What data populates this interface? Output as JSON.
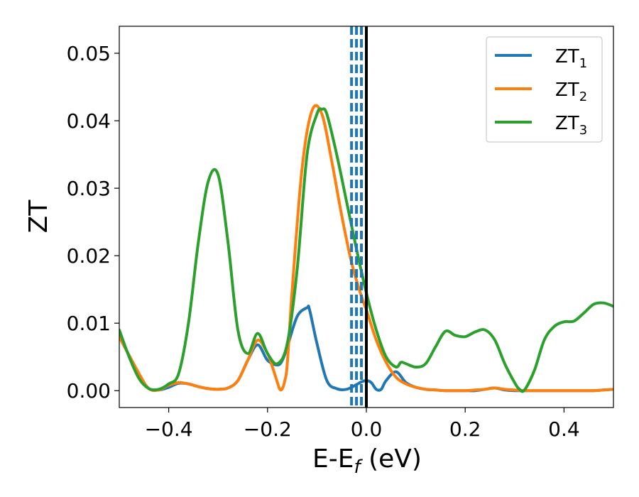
{
  "chart_data": {
    "type": "line",
    "xlabel": "E-E",
    "xlabel_sub": "f",
    "xlabel_unit": " (eV)",
    "ylabel": "ZT",
    "xlim": [
      -0.5,
      0.5
    ],
    "ylim": [
      -0.0025,
      0.054
    ],
    "xticks": [
      -0.4,
      -0.2,
      0.0,
      0.2,
      0.4
    ],
    "xtick_labels": [
      "−0.4",
      "−0.2",
      "0.0",
      "0.2",
      "0.4"
    ],
    "yticks": [
      0.0,
      0.01,
      0.02,
      0.03,
      0.04,
      0.05
    ],
    "ytick_labels": [
      "0.00",
      "0.01",
      "0.02",
      "0.03",
      "0.04",
      "0.05"
    ],
    "legend_position": "top-right",
    "grid": false,
    "vlines": [
      {
        "x": -0.03,
        "style": "dashed",
        "color": "#1f77b4"
      },
      {
        "x": -0.02,
        "style": "dashed",
        "color": "#1f77b4"
      },
      {
        "x": -0.01,
        "style": "dashed",
        "color": "#1f77b4"
      },
      {
        "x": 0.0,
        "style": "solid",
        "color": "#000000"
      }
    ],
    "series": [
      {
        "name": "ZT",
        "name_sub": "1",
        "color": "#1f77b4",
        "x": [
          -0.5,
          -0.46,
          -0.44,
          -0.42,
          -0.4,
          -0.38,
          -0.36,
          -0.34,
          -0.32,
          -0.3,
          -0.28,
          -0.26,
          -0.24,
          -0.22,
          -0.2,
          -0.18,
          -0.17,
          -0.16,
          -0.14,
          -0.12,
          -0.115,
          -0.1,
          -0.08,
          -0.06,
          -0.04,
          -0.02,
          -0.01,
          0.0,
          0.01,
          0.02,
          0.03,
          0.04,
          0.06,
          0.08,
          0.1,
          0.12,
          0.14,
          0.16,
          0.18,
          0.2,
          0.22,
          0.24,
          0.26,
          0.28,
          0.3,
          0.32,
          0.34,
          0.36,
          0.38,
          0.4,
          0.42,
          0.44,
          0.46,
          0.48,
          0.5
        ],
        "y": [
          0.008,
          0.0025,
          0.0003,
          0.0001,
          0.0005,
          0.0011,
          0.001,
          0.0006,
          0.0003,
          0.0002,
          0.0004,
          0.0015,
          0.0045,
          0.0068,
          0.0045,
          0.0038,
          0.0045,
          0.0065,
          0.011,
          0.0123,
          0.012,
          0.007,
          0.0015,
          0.0003,
          0.0002,
          0.0009,
          0.0013,
          0.0015,
          0.0012,
          0.0002,
          0.0002,
          0.0015,
          0.0028,
          0.0012,
          0.0005,
          0.0002,
          0.0001,
          0.0,
          0.0,
          0.0,
          0.0,
          0.0002,
          0.0004,
          0.0001,
          0.0,
          0.0,
          0.0,
          0.0,
          0.0,
          0.0,
          0.0,
          0.0,
          0.0,
          0.0001,
          0.0002
        ]
      },
      {
        "name": "ZT",
        "name_sub": "2",
        "color": "#ff7f0e",
        "x": [
          -0.5,
          -0.46,
          -0.44,
          -0.42,
          -0.4,
          -0.38,
          -0.36,
          -0.34,
          -0.32,
          -0.3,
          -0.28,
          -0.26,
          -0.24,
          -0.22,
          -0.2,
          -0.19,
          -0.18,
          -0.175,
          -0.17,
          -0.165,
          -0.16,
          -0.15,
          -0.13,
          -0.11,
          -0.09,
          -0.07,
          -0.05,
          -0.03,
          -0.01,
          0.0,
          0.02,
          0.04,
          0.06,
          0.08,
          0.1,
          0.12,
          0.14,
          0.16,
          0.18,
          0.2,
          0.22,
          0.24,
          0.26,
          0.28,
          0.3,
          0.32,
          0.34,
          0.36,
          0.38,
          0.4,
          0.42,
          0.44,
          0.46,
          0.48,
          0.5
        ],
        "y": [
          0.008,
          0.0025,
          0.0003,
          0.0001,
          0.0008,
          0.0012,
          0.001,
          0.0006,
          0.0003,
          0.0002,
          0.0004,
          0.0015,
          0.0045,
          0.0075,
          0.0055,
          0.0035,
          0.0012,
          0.0002,
          0.0003,
          0.0015,
          0.004,
          0.015,
          0.033,
          0.0415,
          0.041,
          0.034,
          0.026,
          0.019,
          0.014,
          0.012,
          0.0075,
          0.0042,
          0.002,
          0.001,
          0.0005,
          0.0002,
          0.0001,
          0.0,
          0.0,
          0.0,
          0.0001,
          0.0002,
          0.0004,
          0.0002,
          0.0001,
          0.0,
          0.0,
          0.0,
          0.0,
          0.0,
          0.0,
          0.0,
          0.0,
          0.0001,
          0.0002
        ]
      },
      {
        "name": "ZT",
        "name_sub": "3",
        "color": "#2ca02c",
        "x": [
          -0.5,
          -0.48,
          -0.46,
          -0.44,
          -0.42,
          -0.4,
          -0.38,
          -0.36,
          -0.34,
          -0.32,
          -0.3,
          -0.28,
          -0.26,
          -0.24,
          -0.22,
          -0.2,
          -0.18,
          -0.16,
          -0.14,
          -0.12,
          -0.1,
          -0.09,
          -0.08,
          -0.06,
          -0.04,
          -0.02,
          0.0,
          0.02,
          0.04,
          0.06,
          0.07,
          0.08,
          0.1,
          0.12,
          0.14,
          0.16,
          0.18,
          0.2,
          0.22,
          0.24,
          0.26,
          0.28,
          0.3,
          0.31,
          0.32,
          0.34,
          0.36,
          0.38,
          0.4,
          0.42,
          0.44,
          0.46,
          0.48,
          0.5
        ],
        "y": [
          0.009,
          0.005,
          0.0018,
          0.0003,
          0.0002,
          0.001,
          0.0025,
          0.01,
          0.022,
          0.031,
          0.032,
          0.022,
          0.009,
          0.0055,
          0.0085,
          0.0055,
          0.004,
          0.007,
          0.018,
          0.035,
          0.041,
          0.0417,
          0.041,
          0.035,
          0.028,
          0.021,
          0.0145,
          0.009,
          0.005,
          0.0035,
          0.0042,
          0.004,
          0.0035,
          0.004,
          0.0065,
          0.0088,
          0.0082,
          0.008,
          0.0087,
          0.009,
          0.0075,
          0.004,
          0.0012,
          0.0002,
          0.0001,
          0.003,
          0.0075,
          0.0095,
          0.0102,
          0.0103,
          0.0115,
          0.0128,
          0.013,
          0.0125
        ]
      }
    ]
  }
}
